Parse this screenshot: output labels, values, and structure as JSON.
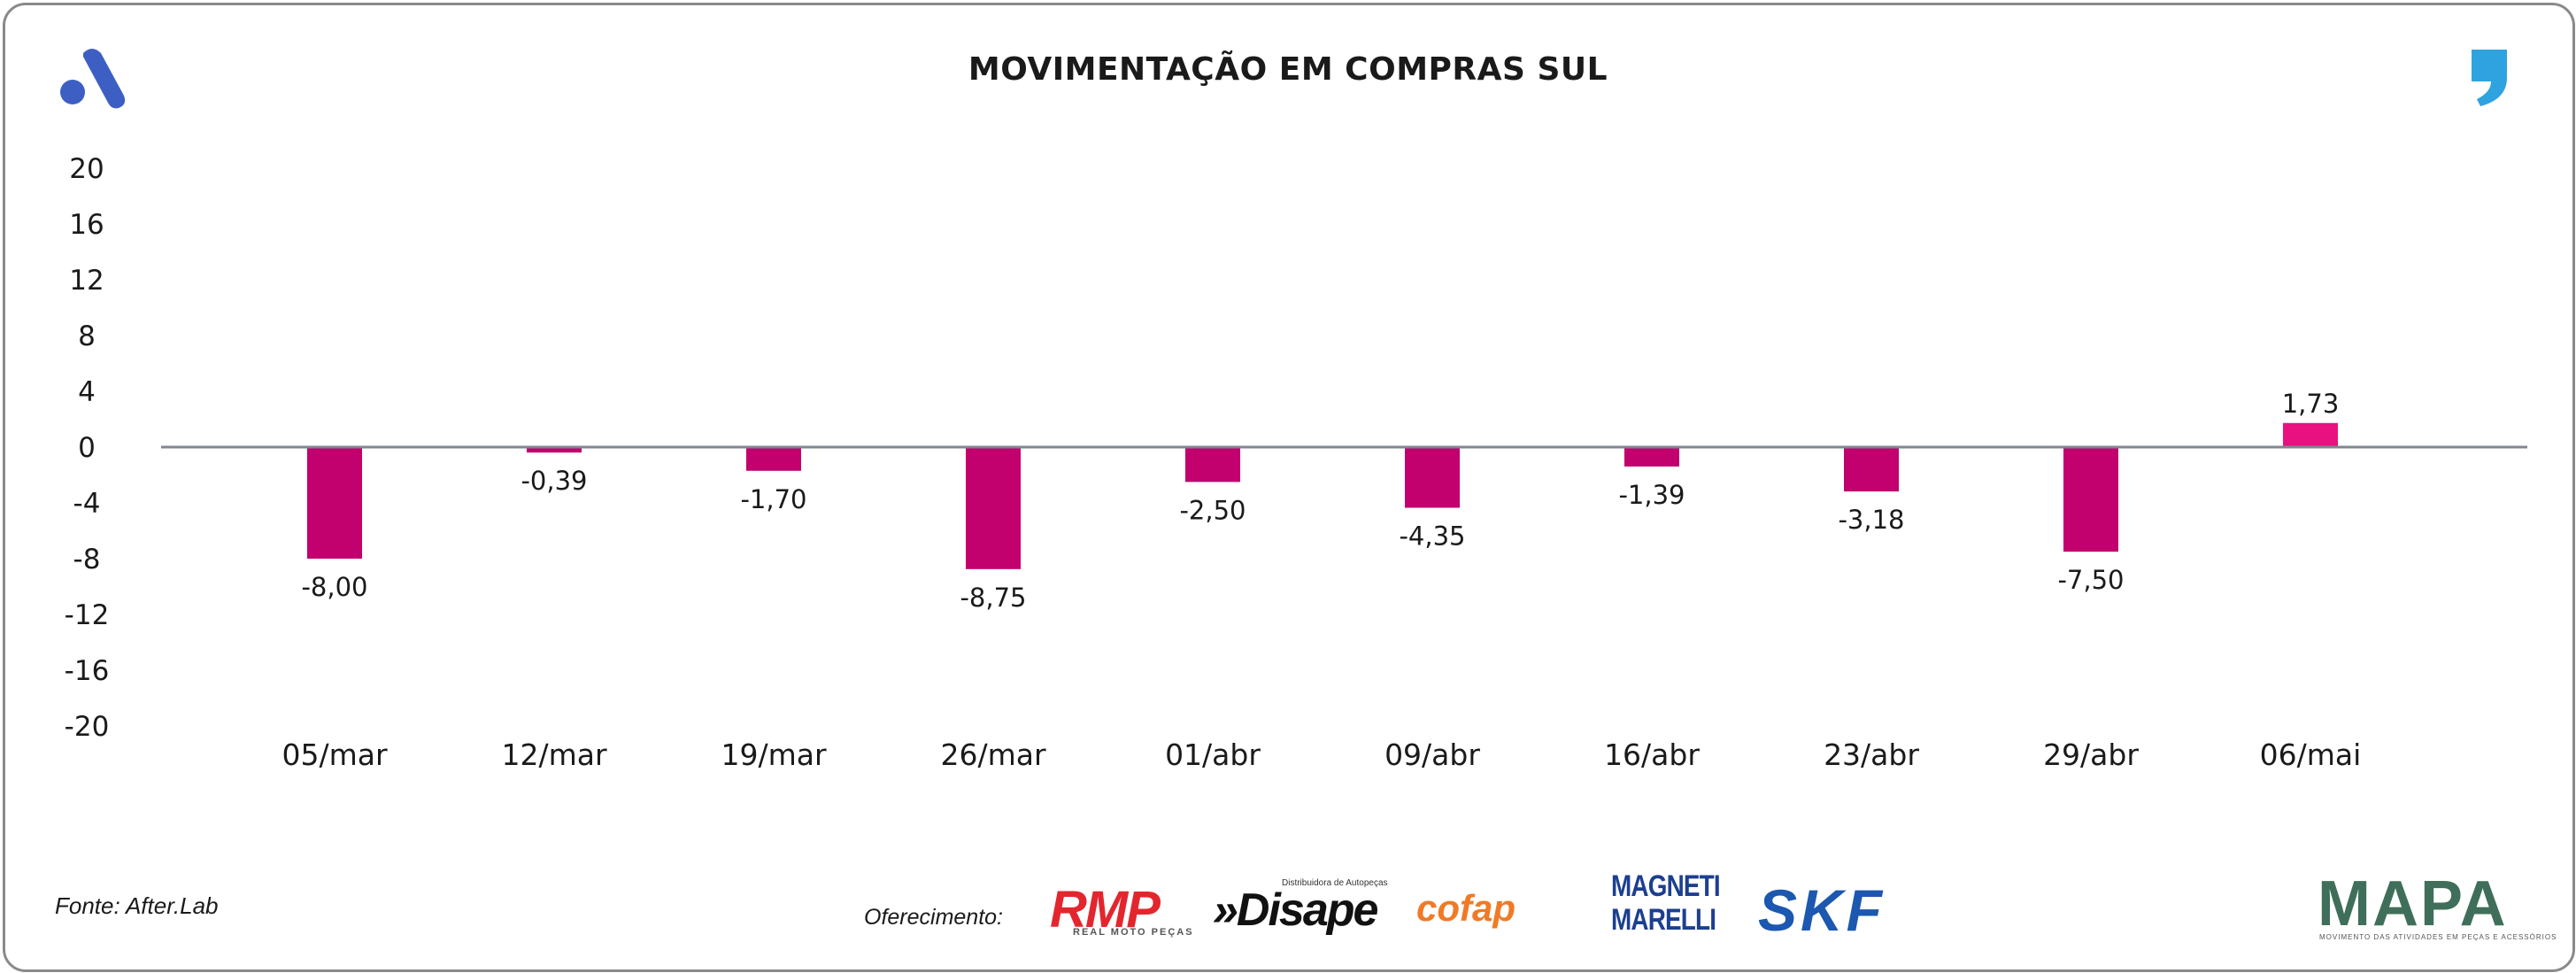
{
  "header": {
    "title": "MOVIMENTAÇÃO EM COMPRAS SUL"
  },
  "footer": {
    "source": "Fonte: After.Lab",
    "offer_label": "Oferecimento:",
    "sponsors": {
      "rmp": "RMP",
      "rmp_sub": "REAL MOTO PEÇAS",
      "disape": "»Disape",
      "disape_sub": "Distribuidora de Autopeças",
      "cofap": "cofap",
      "magneti_marelli": "MAGNETI MARELLI",
      "skf": "SKF",
      "mapa": "MAPA",
      "mapa_sub": "MOVIMENTO DAS ATIVIDADES EM PEÇAS E ACESSÓRIOS"
    }
  },
  "colors": {
    "bar": "#c2006e",
    "bar_positive": "#e8117f",
    "zero_line": "#7f8790",
    "logo_blue": "#3d5fc4",
    "comma_blue": "#2fa3e0"
  },
  "chart_data": {
    "type": "bar",
    "title": "MOVIMENTAÇÃO EM COMPRAS SUL",
    "categories": [
      "05/mar",
      "12/mar",
      "19/mar",
      "26/mar",
      "01/abr",
      "09/abr",
      "16/abr",
      "23/abr",
      "29/abr",
      "06/mai"
    ],
    "values": [
      -8.0,
      -0.39,
      -1.7,
      -8.75,
      -2.5,
      -4.35,
      -1.39,
      -3.18,
      -7.5,
      1.73
    ],
    "value_labels": [
      "-8,00",
      "-0,39",
      "-1,70",
      "-8,75",
      "-2,50",
      "-4,35",
      "-1,39",
      "-3,18",
      "-7,50",
      "1,73"
    ],
    "ylim": [
      -20,
      20
    ],
    "yticks": [
      20,
      16,
      12,
      8,
      4,
      0,
      -4,
      -8,
      -12,
      -16,
      -20
    ],
    "ytick_labels": [
      "20",
      "16",
      "12",
      "8",
      "4",
      "0",
      "-4",
      "-8",
      "-12",
      "-16",
      "-20"
    ],
    "xlabel": "",
    "ylabel": "",
    "grid": false,
    "legend": "none"
  }
}
